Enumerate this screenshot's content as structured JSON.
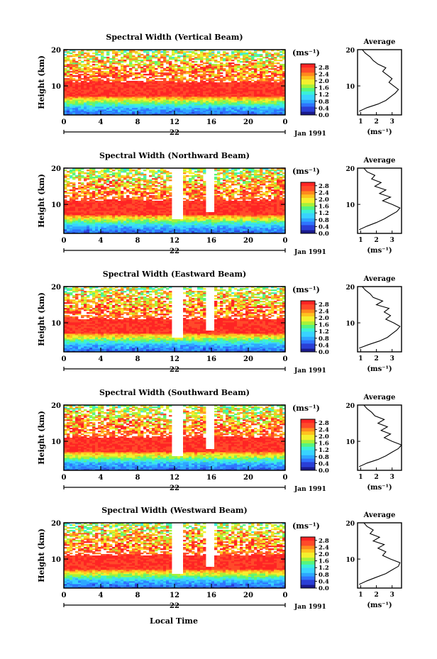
{
  "chart_data": {
    "type": "heatmap",
    "panels": [
      {
        "title": "Spectral Width (Vertical Beam)",
        "avg_title": "Average",
        "avg_xticks": [
          "1",
          "2",
          "3"
        ],
        "avg_xlim": [
          0.8,
          3.6
        ],
        "avg_profile": [
          [
            0.9,
            3
          ],
          [
            1.4,
            4
          ],
          [
            2.1,
            5
          ],
          [
            2.6,
            6
          ],
          [
            2.9,
            7
          ],
          [
            3.2,
            8
          ],
          [
            3.4,
            9
          ],
          [
            3.1,
            10
          ],
          [
            2.8,
            11
          ],
          [
            3.0,
            12
          ],
          [
            2.7,
            13
          ],
          [
            2.4,
            14
          ],
          [
            2.6,
            15
          ],
          [
            2.1,
            16
          ],
          [
            1.8,
            17
          ],
          [
            1.6,
            18
          ],
          [
            1.3,
            19
          ],
          [
            1.1,
            20
          ]
        ]
      },
      {
        "title": "Spectral Width (Northward Beam)",
        "avg_title": "Average",
        "avg_xticks": [
          "1",
          "2",
          "3"
        ],
        "avg_xlim": [
          0.8,
          3.6
        ],
        "avg_profile": [
          [
            0.9,
            3
          ],
          [
            1.4,
            4
          ],
          [
            2.0,
            5
          ],
          [
            2.5,
            6
          ],
          [
            2.9,
            7
          ],
          [
            3.3,
            8
          ],
          [
            3.5,
            9
          ],
          [
            3.0,
            10
          ],
          [
            2.4,
            11
          ],
          [
            2.9,
            12
          ],
          [
            2.2,
            13
          ],
          [
            2.6,
            14
          ],
          [
            1.9,
            15
          ],
          [
            2.3,
            16
          ],
          [
            1.7,
            17
          ],
          [
            1.9,
            18
          ],
          [
            1.4,
            19
          ],
          [
            1.2,
            20
          ]
        ]
      },
      {
        "title": "Spectral Width (Eastward Beam)",
        "avg_title": "Average",
        "avg_xticks": [
          "1",
          "2",
          "3"
        ],
        "avg_xlim": [
          0.8,
          3.6
        ],
        "avg_profile": [
          [
            0.9,
            3
          ],
          [
            1.5,
            4
          ],
          [
            2.2,
            5
          ],
          [
            2.7,
            6
          ],
          [
            3.0,
            7
          ],
          [
            3.3,
            8
          ],
          [
            3.5,
            9
          ],
          [
            3.1,
            10
          ],
          [
            2.6,
            11
          ],
          [
            2.9,
            12
          ],
          [
            2.5,
            13
          ],
          [
            2.8,
            14
          ],
          [
            2.0,
            15
          ],
          [
            2.4,
            16
          ],
          [
            1.8,
            17
          ],
          [
            1.6,
            18
          ],
          [
            1.3,
            19
          ],
          [
            1.1,
            20
          ]
        ]
      },
      {
        "title": "Spectral Width (Southward Beam)",
        "avg_title": "Average",
        "avg_xticks": [
          "1",
          "2",
          "3"
        ],
        "avg_xlim": [
          0.8,
          3.6
        ],
        "avg_profile": [
          [
            0.9,
            3
          ],
          [
            1.4,
            4
          ],
          [
            2.1,
            5
          ],
          [
            2.6,
            6
          ],
          [
            3.0,
            7
          ],
          [
            3.4,
            8
          ],
          [
            3.6,
            9
          ],
          [
            3.0,
            10
          ],
          [
            2.5,
            11
          ],
          [
            2.9,
            12
          ],
          [
            2.3,
            13
          ],
          [
            2.7,
            14
          ],
          [
            2.1,
            15
          ],
          [
            2.5,
            16
          ],
          [
            1.9,
            17
          ],
          [
            1.7,
            18
          ],
          [
            1.4,
            19
          ],
          [
            1.2,
            20
          ]
        ]
      },
      {
        "title": "Spectral Width (Westward Beam)",
        "avg_title": "Average",
        "avg_xticks": [
          "1",
          "2",
          "3"
        ],
        "avg_xlim": [
          0.8,
          3.6
        ],
        "avg_profile": [
          [
            0.9,
            3
          ],
          [
            1.4,
            4
          ],
          [
            2.0,
            5
          ],
          [
            2.6,
            6
          ],
          [
            3.0,
            7
          ],
          [
            3.4,
            8
          ],
          [
            3.5,
            9
          ],
          [
            2.9,
            10
          ],
          [
            2.4,
            11
          ],
          [
            2.6,
            12
          ],
          [
            2.1,
            13
          ],
          [
            2.5,
            14
          ],
          [
            1.8,
            15
          ],
          [
            2.2,
            16
          ],
          [
            1.6,
            17
          ],
          [
            1.8,
            18
          ],
          [
            1.4,
            19
          ],
          [
            1.2,
            20
          ]
        ]
      }
    ],
    "ylabel": "Height (km)",
    "yticks": [
      "10",
      "20"
    ],
    "ylim": [
      2,
      20
    ],
    "xticks": [
      "0",
      "4",
      "8",
      "12",
      "16",
      "20",
      "0"
    ],
    "xlim": [
      0,
      24
    ],
    "day_label": "22",
    "date_label": "Jan 1991",
    "xlabel": "Local Time",
    "colorbar_unit": "(ms⁻¹)",
    "colorbar_ticks": [
      "2.8",
      "2.4",
      "2.0",
      "1.6",
      "1.2",
      "0.8",
      "0.4",
      "0.0"
    ],
    "colorbar_range": [
      0.0,
      3.0
    ],
    "avg_xlabel": "(ms⁻¹)",
    "avg_yticks": [
      "10",
      "20"
    ],
    "colormap": [
      "#1a1a8c",
      "#2a3fd6",
      "#2f74ff",
      "#2ea7ff",
      "#39d3ff",
      "#3bf0d8",
      "#56f57e",
      "#a6f23a",
      "#f4f02e",
      "#ffc21f",
      "#ff8a1e",
      "#ff4a2a",
      "#ff2424"
    ]
  }
}
